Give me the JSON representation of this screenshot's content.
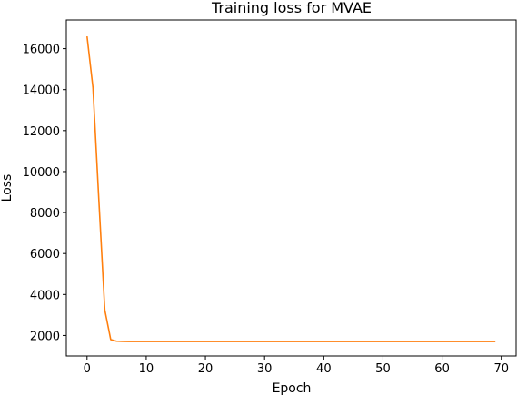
{
  "chart_data": {
    "type": "line",
    "title": "Training loss for MVAE",
    "xlabel": "Epoch",
    "ylabel": "Loss",
    "xlim": [
      -3.5,
      72.5
    ],
    "ylim": [
      1000,
      17400
    ],
    "xticks": [
      0,
      10,
      20,
      30,
      40,
      50,
      60,
      70
    ],
    "yticks": [
      2000,
      4000,
      6000,
      8000,
      10000,
      12000,
      14000,
      16000
    ],
    "grid": false,
    "legend": "none",
    "series": [
      {
        "color": "#ff7f0e",
        "values": [
          16600,
          14100,
          8600,
          3250,
          1800,
          1720,
          1710,
          1705,
          1705,
          1705,
          1705,
          1705,
          1705,
          1705,
          1705,
          1705,
          1705,
          1705,
          1705,
          1705,
          1705,
          1705,
          1705,
          1705,
          1705,
          1705,
          1705,
          1705,
          1705,
          1705,
          1705,
          1705,
          1705,
          1705,
          1705,
          1705,
          1705,
          1705,
          1705,
          1705,
          1705,
          1705,
          1705,
          1705,
          1705,
          1705,
          1705,
          1705,
          1705,
          1705,
          1705,
          1705,
          1705,
          1705,
          1705,
          1705,
          1705,
          1705,
          1705,
          1705,
          1705,
          1705,
          1705,
          1705,
          1705,
          1705,
          1705,
          1705,
          1705,
          1705
        ]
      }
    ]
  }
}
